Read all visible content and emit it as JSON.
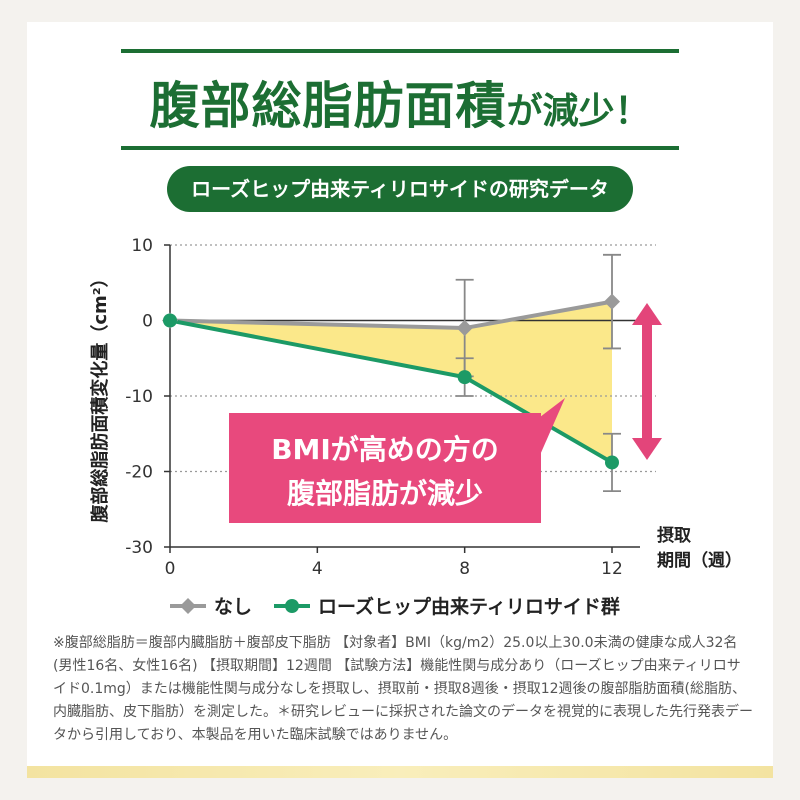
{
  "headline": {
    "main": "腹部総脂肪面積",
    "suffix": "が減少！"
  },
  "subtitle": "ローズヒップ由来ティリロサイドの研究データ",
  "callout": {
    "line1": "BMIが高めの方の",
    "line2": "腹部脂肪が減少"
  },
  "colors": {
    "green": "#1c9a66",
    "gray": "#9a9a9a",
    "fill": "#fbe88a",
    "callout": "#e8497d",
    "arrow": "#e3457a",
    "dark_green": "#1c6e33"
  },
  "chart_data": {
    "type": "line",
    "ylabel": "腹部総脂肪面積変化量（cm²）",
    "xlabel": [
      "摂取",
      "期間（週）"
    ],
    "x": [
      0,
      4,
      8,
      12
    ],
    "x_ticks": [
      "0",
      "4",
      "8",
      "12"
    ],
    "y_ticks": [
      "10",
      "0",
      "-10",
      "-20",
      "-30"
    ],
    "ylim": [
      -30,
      10
    ],
    "xlim": [
      0,
      12
    ],
    "series": [
      {
        "name": "なし",
        "marker": "diamond",
        "color": "#9a9a9a",
        "points": [
          [
            0,
            0
          ],
          [
            8,
            -1
          ],
          [
            12,
            2.5
          ]
        ],
        "error": [
          null,
          6.4,
          6.2
        ]
      },
      {
        "name": "ローズヒップ由来ティリロサイド群",
        "marker": "circle",
        "color": "#1c9a66",
        "points": [
          [
            0,
            0
          ],
          [
            8,
            -7.5
          ],
          [
            12,
            -18.8
          ]
        ],
        "error": [
          null,
          2.5,
          3.8
        ]
      }
    ]
  },
  "footnote": "※腹部総脂肪＝腹部内臓脂肪＋腹部皮下脂肪 【対象者】BMI（kg/m2）25.0以上30.0未満の健康な成人32名(男性16名、女性16名) 【摂取期間】12週間 【試験方法】機能性関与成分あり（ローズヒップ由来ティリロサイド0.1mg）または機能性関与成分なしを摂取し、摂取前・摂取8週後・摂取12週後の腹部脂肪面積(総脂肪、内臓脂肪、皮下脂肪）を測定した。＊研究レビューに採択された論文のデータを視覚的に表現した先行発表データから引用しており、本製品を用いた臨床試験ではありません。"
}
